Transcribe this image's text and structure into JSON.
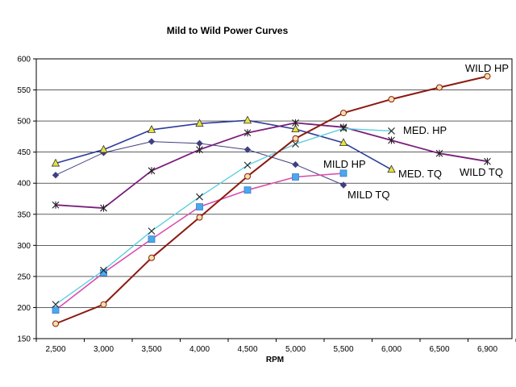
{
  "chart_data": {
    "type": "line",
    "title": "Mild to Wild Power Curves",
    "xlabel": "RPM",
    "ylabel": "",
    "x": [
      2500,
      3000,
      3500,
      4000,
      4500,
      5000,
      5500,
      6000,
      6500,
      6900
    ],
    "x_tick_labels": [
      "2,500",
      "3,000",
      "3,500",
      "4,000",
      "4,500",
      "5,000",
      "5,500",
      "6,000",
      "6,500",
      "6,900"
    ],
    "ylim": [
      150,
      600
    ],
    "y_ticks": [
      150,
      200,
      250,
      300,
      350,
      400,
      450,
      500,
      550,
      600
    ],
    "grid": "horizontal",
    "series": [
      {
        "name": "MILD TQ",
        "label": "MILD TQ",
        "color": "#404080",
        "marker": "diamond",
        "x": [
          2500,
          3000,
          3500,
          4000,
          4500,
          5000,
          5500
        ],
        "values": [
          413,
          449,
          467,
          464,
          454,
          430,
          397
        ]
      },
      {
        "name": "MED. TQ",
        "label": "MED. TQ",
        "color": "#2e3c9a",
        "marker": "triangle",
        "x": [
          2500,
          3000,
          3500,
          4000,
          4500,
          5000,
          5500,
          6000
        ],
        "values": [
          432,
          454,
          486,
          496,
          501,
          487,
          465,
          422
        ]
      },
      {
        "name": "WILD TQ",
        "label": "WILD TQ",
        "color": "#7a1f7a",
        "marker": "asterisk",
        "x": [
          2500,
          3000,
          3500,
          4000,
          4500,
          5000,
          5500,
          6000,
          6500,
          6900
        ],
        "values": [
          365,
          360,
          420,
          454,
          481,
          497,
          490,
          469,
          448,
          435
        ]
      },
      {
        "name": "MILD HP",
        "label": "MILD HP",
        "color": "#d94fae",
        "marker": "square",
        "x": [
          2500,
          3000,
          3500,
          4000,
          4500,
          5000,
          5500
        ],
        "values": [
          196,
          256,
          310,
          362,
          389,
          410,
          416
        ]
      },
      {
        "name": "MED. HP",
        "label": "MED. HP",
        "color": "#5ecfe0",
        "marker": "x",
        "x": [
          2500,
          3000,
          3500,
          4000,
          4500,
          5000,
          5500,
          6000
        ],
        "values": [
          205,
          260,
          323,
          378,
          429,
          463,
          488,
          484
        ]
      },
      {
        "name": "WILD HP",
        "label": "WILD HP",
        "color": "#8b1a10",
        "marker": "circle",
        "x": [
          2500,
          3000,
          3500,
          4000,
          4500,
          5000,
          5500,
          6000,
          6500,
          6900
        ],
        "values": [
          174,
          205,
          280,
          345,
          411,
          472,
          513,
          535,
          554,
          572
        ]
      }
    ]
  }
}
